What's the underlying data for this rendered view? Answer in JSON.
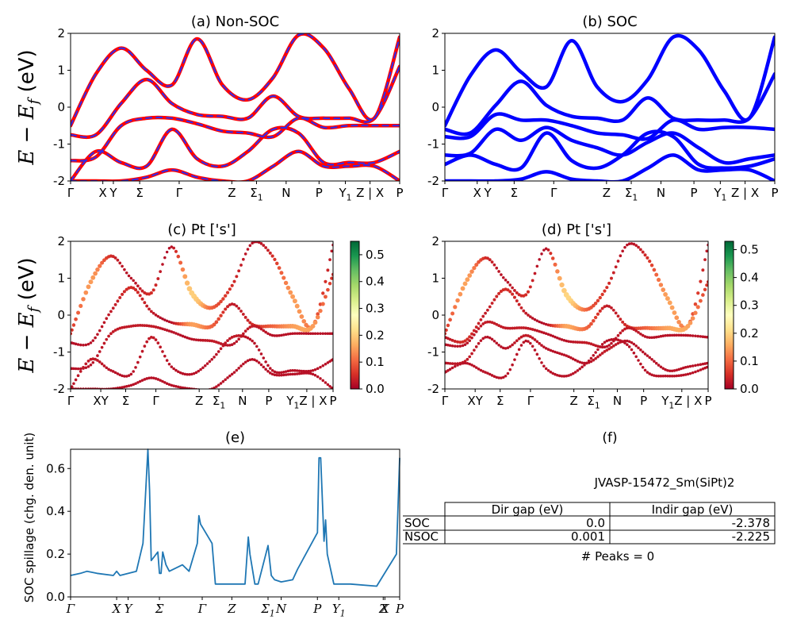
{
  "chart_data": [
    {
      "id": "a",
      "type": "line",
      "title": "(a) Non-SOC",
      "ylabel": "E − E_f (eV)",
      "ylim": [
        -2,
        2
      ],
      "yticks": [
        -2,
        -1,
        0,
        1,
        2
      ],
      "xticks": [
        "Γ",
        "X",
        "Y",
        "Σ",
        "Γ",
        "Z",
        "Σ1",
        "N",
        "P",
        "Y1",
        "Z | X",
        "P"
      ],
      "series": [
        {
          "color": "#ff0000",
          "style": "solid",
          "bands": [
            [
              -0.5,
              0.9,
              1.6,
              1.0,
              0.6,
              1.85,
              0.6,
              0.2,
              0.8,
              1.95,
              1.6,
              0.5,
              -0.3,
              1.9
            ],
            [
              -0.75,
              -0.75,
              0.1,
              0.75,
              0.1,
              -0.2,
              -0.25,
              -0.3,
              0.3,
              -0.25,
              -0.3,
              -0.3,
              -0.3,
              1.1
            ],
            [
              -1.45,
              -1.35,
              -0.5,
              -0.3,
              -0.3,
              -0.45,
              -0.65,
              -0.7,
              -0.8,
              -0.3,
              -0.55,
              -0.5,
              -0.5,
              -0.5
            ],
            [
              -2,
              -1.2,
              -1.5,
              -1.6,
              -0.6,
              -1.4,
              -1.6,
              -1.2,
              -0.6,
              -0.7,
              -1.5,
              -1.5,
              -1.5,
              -1.2
            ],
            [
              -2,
              -2,
              -2,
              -1.9,
              -1.7,
              -1.9,
              -2,
              -2,
              -1.6,
              -1.2,
              -1.6,
              -1.6,
              -1.6,
              -2
            ]
          ]
        },
        {
          "color": "#2d2df0",
          "style": "dashed",
          "bands": [
            [
              -0.5,
              0.9,
              1.6,
              1.0,
              0.6,
              1.85,
              0.6,
              0.2,
              0.8,
              1.95,
              1.6,
              0.5,
              -0.3,
              1.9
            ],
            [
              -0.75,
              -0.75,
              0.1,
              0.75,
              0.1,
              -0.2,
              -0.25,
              -0.3,
              0.3,
              -0.25,
              -0.3,
              -0.3,
              -0.3,
              1.1
            ],
            [
              -1.45,
              -1.35,
              -0.5,
              -0.3,
              -0.3,
              -0.45,
              -0.65,
              -0.7,
              -0.8,
              -0.3,
              -0.55,
              -0.5,
              -0.5,
              -0.5
            ],
            [
              -2,
              -1.2,
              -1.5,
              -1.6,
              -0.6,
              -1.4,
              -1.6,
              -1.2,
              -0.6,
              -0.7,
              -1.5,
              -1.5,
              -1.5,
              -1.2
            ],
            [
              -2,
              -2,
              -2,
              -1.9,
              -1.7,
              -1.9,
              -2,
              -2,
              -1.6,
              -1.2,
              -1.6,
              -1.6,
              -1.6,
              -2
            ]
          ]
        }
      ]
    },
    {
      "id": "b",
      "type": "line",
      "title": "(b) SOC",
      "ylim": [
        -2,
        2
      ],
      "yticks": [
        -2,
        -1,
        0,
        1,
        2
      ],
      "xticks": [
        "Γ",
        "X",
        "Y",
        "Σ",
        "Γ",
        "Z",
        "Σ1",
        "N",
        "P",
        "Y1",
        "Z | X",
        "P"
      ],
      "series": [
        {
          "color": "#0000ff",
          "style": "solid",
          "bands": [
            [
              -0.5,
              0.85,
              1.55,
              0.95,
              0.55,
              1.8,
              0.55,
              0.15,
              0.75,
              1.9,
              1.55,
              0.45,
              -0.3,
              1.9
            ],
            [
              -0.6,
              -0.7,
              0.05,
              0.7,
              0.05,
              -0.25,
              -0.3,
              -0.35,
              0.25,
              -0.3,
              -0.35,
              -0.35,
              -0.3,
              0.9
            ],
            [
              -0.8,
              -0.8,
              -0.2,
              -0.35,
              -0.35,
              -0.5,
              -0.7,
              -0.75,
              -0.85,
              -0.35,
              -0.6,
              -0.55,
              -0.55,
              -0.6
            ],
            [
              -1.3,
              -1.25,
              -0.6,
              -0.9,
              -0.55,
              -0.9,
              -1.1,
              -1.3,
              -0.95,
              -0.7,
              -1.1,
              -1.5,
              -1.4,
              -1.3
            ],
            [
              -1.55,
              -1.3,
              -1.55,
              -1.65,
              -0.7,
              -1.45,
              -1.65,
              -1.3,
              -0.7,
              -0.8,
              -1.55,
              -1.65,
              -1.6,
              -1.4
            ],
            [
              -2,
              -2,
              -2,
              -1.95,
              -1.75,
              -1.95,
              -2,
              -2,
              -1.65,
              -1.3,
              -1.7,
              -1.7,
              -1.7,
              -2
            ]
          ]
        }
      ]
    },
    {
      "id": "c",
      "type": "scatter",
      "title": "(c)  Pt ['s']",
      "ylabel": "E − E_f (eV)",
      "ylim": [
        -2,
        2
      ],
      "yticks": [
        -2,
        -1,
        0,
        1,
        2
      ],
      "xticks": [
        "Γ",
        "XY",
        "Σ",
        "Γ",
        "Z",
        "Σ1",
        "N",
        "P",
        "Y1Z | X",
        "P"
      ],
      "colorbar": {
        "min": 0.0,
        "max": 0.55,
        "ticks": [
          "0.0",
          "0.1",
          "0.2",
          "0.3",
          "0.4",
          "0.5"
        ],
        "colormap": "RdYlGn"
      },
      "bands": [
        [
          -0.5,
          0.9,
          1.6,
          1.0,
          0.6,
          1.85,
          0.6,
          0.2,
          0.8,
          1.95,
          1.6,
          0.5,
          -0.3,
          1.9
        ],
        [
          -0.75,
          -0.75,
          0.1,
          0.75,
          0.1,
          -0.2,
          -0.25,
          -0.3,
          0.3,
          -0.25,
          -0.3,
          -0.3,
          -0.3,
          1.1
        ],
        [
          -1.45,
          -1.35,
          -0.5,
          -0.3,
          -0.3,
          -0.45,
          -0.65,
          -0.7,
          -0.8,
          -0.3,
          -0.55,
          -0.5,
          -0.5,
          -0.5
        ],
        [
          -2,
          -1.2,
          -1.5,
          -1.6,
          -0.6,
          -1.4,
          -1.6,
          -1.2,
          -0.6,
          -0.7,
          -1.5,
          -1.5,
          -1.5,
          -1.2
        ],
        [
          -2,
          -2,
          -2,
          -1.9,
          -1.7,
          -1.9,
          -2,
          -2,
          -1.6,
          -1.2,
          -1.6,
          -1.6,
          -1.6,
          -2
        ]
      ],
      "weights": [
        [
          0.05,
          0.15,
          0.05,
          0.02,
          0.05,
          0.02,
          0.2,
          0.1,
          0.05,
          0.02,
          0.05,
          0.15,
          0.1,
          0.02
        ],
        [
          0.02,
          0.02,
          0.03,
          0.05,
          0.03,
          0.02,
          0.15,
          0.1,
          0.03,
          0.05,
          0.1,
          0.15,
          0.15,
          0.05
        ],
        [
          0.02,
          0.02,
          0.03,
          0.03,
          0.03,
          0.02,
          0.02,
          0.03,
          0.02,
          0.03,
          0.02,
          0.02,
          0.02,
          0.02
        ],
        [
          0.02,
          0.03,
          0.02,
          0.02,
          0.03,
          0.02,
          0.02,
          0.02,
          0.03,
          0.02,
          0.02,
          0.02,
          0.02,
          0.02
        ],
        [
          0.02,
          0.02,
          0.02,
          0.02,
          0.02,
          0.02,
          0.02,
          0.02,
          0.02,
          0.02,
          0.02,
          0.02,
          0.02,
          0.02
        ]
      ]
    },
    {
      "id": "d",
      "type": "scatter",
      "title": "(d) Pt ['s']",
      "ylim": [
        -2,
        2
      ],
      "yticks": [
        -2,
        -1,
        0,
        1,
        2
      ],
      "xticks": [
        "Γ",
        "XY",
        "Σ",
        "Γ",
        "Z",
        "Σ1",
        "N",
        "P",
        "Y1Z | X",
        "P"
      ],
      "colorbar": {
        "min": 0.0,
        "max": 0.53,
        "ticks": [
          "0.0",
          "0.1",
          "0.2",
          "0.3",
          "0.4",
          "0.5"
        ],
        "colormap": "RdYlGn"
      },
      "bands": [
        [
          -0.5,
          0.85,
          1.55,
          0.95,
          0.55,
          1.8,
          0.55,
          0.15,
          0.75,
          1.9,
          1.55,
          0.45,
          -0.3,
          1.9
        ],
        [
          -0.6,
          -0.7,
          0.05,
          0.7,
          0.05,
          -0.25,
          -0.3,
          -0.35,
          0.25,
          -0.3,
          -0.35,
          -0.35,
          -0.3,
          0.9
        ],
        [
          -0.8,
          -0.8,
          -0.2,
          -0.35,
          -0.35,
          -0.5,
          -0.7,
          -0.75,
          -0.85,
          -0.35,
          -0.6,
          -0.55,
          -0.55,
          -0.6
        ],
        [
          -1.3,
          -1.25,
          -0.6,
          -0.9,
          -0.55,
          -0.9,
          -1.1,
          -1.3,
          -0.95,
          -0.7,
          -1.1,
          -1.5,
          -1.4,
          -1.3
        ],
        [
          -1.55,
          -1.3,
          -1.55,
          -1.65,
          -0.7,
          -1.45,
          -1.65,
          -1.3,
          -0.7,
          -0.8,
          -1.55,
          -1.65,
          -1.6,
          -1.4
        ]
      ],
      "weights": [
        [
          0.05,
          0.15,
          0.05,
          0.02,
          0.05,
          0.02,
          0.2,
          0.1,
          0.05,
          0.02,
          0.05,
          0.15,
          0.1,
          0.02
        ],
        [
          0.02,
          0.05,
          0.03,
          0.05,
          0.03,
          0.02,
          0.15,
          0.1,
          0.03,
          0.05,
          0.1,
          0.15,
          0.15,
          0.05
        ],
        [
          0.02,
          0.02,
          0.03,
          0.03,
          0.03,
          0.02,
          0.02,
          0.03,
          0.02,
          0.03,
          0.02,
          0.02,
          0.02,
          0.02
        ],
        [
          0.02,
          0.03,
          0.02,
          0.02,
          0.03,
          0.02,
          0.02,
          0.02,
          0.03,
          0.02,
          0.02,
          0.02,
          0.02,
          0.02
        ],
        [
          0.02,
          0.02,
          0.02,
          0.02,
          0.02,
          0.02,
          0.02,
          0.02,
          0.02,
          0.02,
          0.02,
          0.02,
          0.02,
          0.02
        ]
      ]
    },
    {
      "id": "e",
      "type": "line",
      "title": "(e)",
      "ylabel": "SOC spillage (chg. den. unit)",
      "ylim": [
        0,
        0.69
      ],
      "yticks": [
        0.0,
        0.2,
        0.4,
        0.6
      ],
      "xticks": [
        "Γ",
        "X",
        "Y",
        "Σ",
        "Γ",
        "Z",
        "Σ1",
        "N",
        "P",
        "Y1",
        "Z",
        "X",
        "P"
      ],
      "series": [
        {
          "color": "#1f77b4",
          "x": [
            0,
            0.03,
            0.05,
            0.08,
            0.13,
            0.14,
            0.15,
            0.2,
            0.22,
            0.235,
            0.24,
            0.245,
            0.25,
            0.265,
            0.27,
            0.275,
            0.28,
            0.29,
            0.3,
            0.34,
            0.36,
            0.385,
            0.39,
            0.395,
            0.43,
            0.44,
            0.45,
            0.455,
            0.48,
            0.53,
            0.54,
            0.545,
            0.56,
            0.57,
            0.6,
            0.61,
            0.62,
            0.64,
            0.675,
            0.69,
            0.75,
            0.755,
            0.76,
            0.77,
            0.775,
            0.78,
            0.8,
            0.85,
            0.93,
            0.95,
            0.99,
            1.0
          ],
          "values": [
            0.1,
            0.11,
            0.12,
            0.11,
            0.1,
            0.12,
            0.1,
            0.12,
            0.25,
            0.69,
            0.5,
            0.17,
            0.18,
            0.21,
            0.11,
            0.11,
            0.21,
            0.15,
            0.12,
            0.15,
            0.12,
            0.25,
            0.38,
            0.34,
            0.25,
            0.06,
            0.06,
            0.06,
            0.06,
            0.06,
            0.28,
            0.2,
            0.06,
            0.06,
            0.24,
            0.1,
            0.08,
            0.07,
            0.08,
            0.13,
            0.3,
            0.65,
            0.65,
            0.26,
            0.36,
            0.2,
            0.06,
            0.06,
            0.05,
            0.1,
            0.2,
            0.65
          ]
        }
      ]
    }
  ],
  "panel_f": {
    "title": "(f)",
    "material": "JVASP-15472_Sm(SiPt)2",
    "table": {
      "headers": [
        "",
        "Dir gap (eV)",
        "Indir gap (eV)"
      ],
      "rows": [
        [
          "SOC",
          "0.0",
          "-2.378"
        ],
        [
          "NSOC",
          "0.001",
          "-2.225"
        ]
      ]
    },
    "peaks": "# Peaks = 0"
  }
}
